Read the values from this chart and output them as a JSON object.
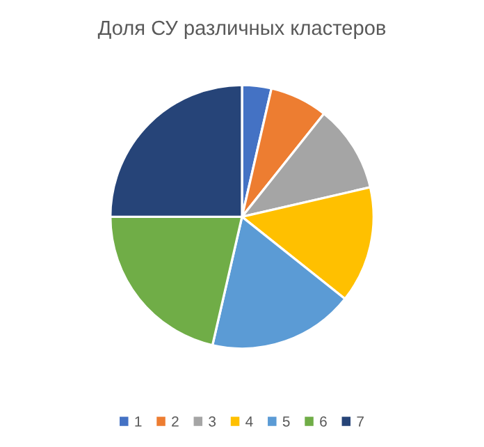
{
  "chart_data": {
    "type": "pie",
    "title": "Доля СУ различных кластеров",
    "categories": [
      "1",
      "2",
      "3",
      "4",
      "5",
      "6",
      "7"
    ],
    "values": [
      3.6,
      7.1,
      10.7,
      14.3,
      17.9,
      21.4,
      25.0
    ],
    "colors": [
      "#4472c4",
      "#ed7d31",
      "#a5a5a5",
      "#ffc000",
      "#5b9bd5",
      "#70ad47",
      "#264478"
    ],
    "legend": "bottom"
  }
}
